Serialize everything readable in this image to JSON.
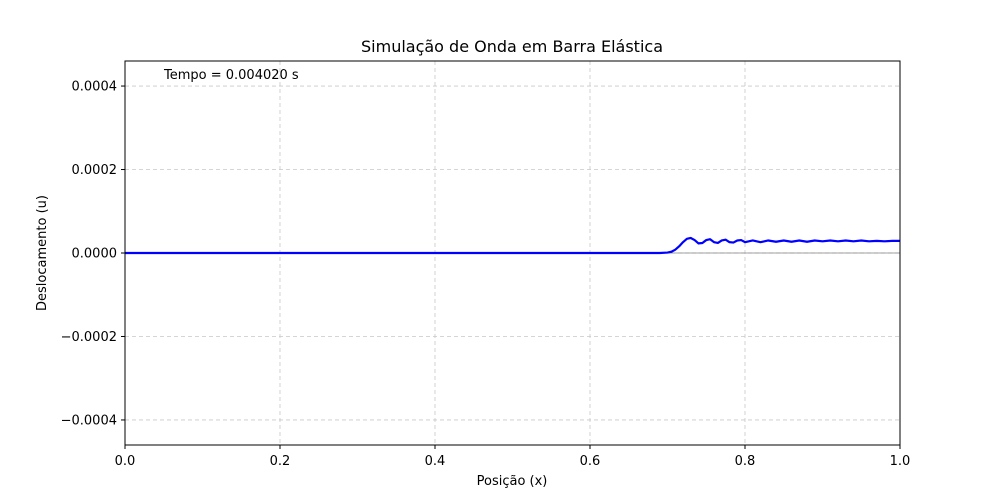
{
  "chart_data": {
    "type": "line",
    "title": "Simulação de Onda em Barra Elástica",
    "xlabel": "Posição (x)",
    "ylabel": "Deslocamento (u)",
    "annotation": "Tempo = 0.004020 s",
    "xlim": [
      0.0,
      1.0
    ],
    "ylim": [
      -0.00046,
      0.00046
    ],
    "x_ticks": [
      0.0,
      0.2,
      0.4,
      0.6,
      0.8,
      1.0
    ],
    "x_tick_labels": [
      "0.0",
      "0.2",
      "0.4",
      "0.6",
      "0.8",
      "1.0"
    ],
    "y_ticks": [
      0.0004,
      0.0002,
      0.0,
      -0.0002,
      -0.0004
    ],
    "y_tick_labels": [
      "0.0004",
      "0.0002",
      "0.0000",
      "−0.0002",
      "−0.0004"
    ],
    "grid": true,
    "baseline_y": 0.0,
    "series": [
      {
        "color": "#0000ff",
        "x": [
          0.0,
          0.1,
          0.2,
          0.3,
          0.4,
          0.5,
          0.6,
          0.69,
          0.7,
          0.705,
          0.71,
          0.715,
          0.72,
          0.725,
          0.73,
          0.735,
          0.74,
          0.745,
          0.75,
          0.755,
          0.76,
          0.765,
          0.77,
          0.775,
          0.78,
          0.785,
          0.79,
          0.795,
          0.8,
          0.81,
          0.82,
          0.83,
          0.84,
          0.85,
          0.86,
          0.87,
          0.88,
          0.89,
          0.9,
          0.91,
          0.92,
          0.93,
          0.94,
          0.95,
          0.96,
          0.97,
          0.98,
          0.99,
          1.0
        ],
        "y": [
          0.0,
          0.0,
          0.0,
          0.0,
          0.0,
          0.0,
          0.0,
          0.0,
          1e-06,
          3e-06,
          8e-06,
          1.6e-05,
          2.6e-05,
          3.4e-05,
          3.6e-05,
          3.1e-05,
          2.3e-05,
          2.4e-05,
          3.1e-05,
          3.3e-05,
          2.6e-05,
          2.4e-05,
          3e-05,
          3.2e-05,
          2.6e-05,
          2.5e-05,
          3e-05,
          3.1e-05,
          2.6e-05,
          3e-05,
          2.6e-05,
          3e-05,
          2.7e-05,
          3e-05,
          2.7e-05,
          3e-05,
          2.7e-05,
          3e-05,
          2.8e-05,
          3e-05,
          2.8e-05,
          3e-05,
          2.8e-05,
          3e-05,
          2.8e-05,
          2.9e-05,
          2.8e-05,
          2.9e-05,
          2.9e-05
        ]
      }
    ]
  }
}
